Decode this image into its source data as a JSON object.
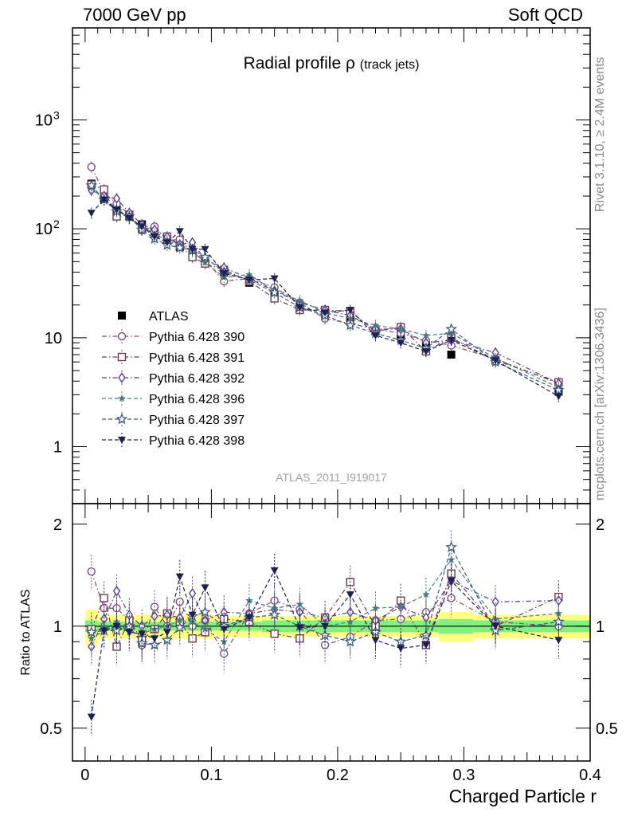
{
  "header": {
    "left": "7000 GeV pp",
    "right": "Soft QCD"
  },
  "side_labels": {
    "rivet": "Rivet 3.1.10, ≥ 2.4M events",
    "mcplots": "mcplots.cern.ch [arXiv:1306.3436]"
  },
  "watermark": "ATLAS_2011_I919017",
  "chart_data": [
    {
      "type": "scatter",
      "panel": "main",
      "title": "Radial profile",
      "title_symbol": "ρ",
      "title_suffix": "(track jets)",
      "xlabel": "Charged Particle r",
      "ylabel": "",
      "xlim": [
        -0.01,
        0.4
      ],
      "ylim": [
        0.3,
        7000
      ],
      "yscale": "log",
      "xticks": [
        "0",
        "0.1",
        "0.2",
        "0.3",
        "0.4"
      ],
      "yticks": [
        "1",
        "10",
        "10^2",
        "10^3"
      ],
      "legend_position": "left",
      "x": [
        0.005,
        0.015,
        0.025,
        0.035,
        0.045,
        0.055,
        0.065,
        0.075,
        0.085,
        0.095,
        0.11,
        0.13,
        0.15,
        0.17,
        0.19,
        0.21,
        0.23,
        0.25,
        0.27,
        0.29,
        0.325,
        0.375
      ],
      "series": [
        {
          "name": "ATLAS",
          "marker": "filled-square",
          "color": "#000000",
          "line": "none",
          "values": [
            260,
            190,
            150,
            130,
            110,
            92,
            78,
            68,
            60,
            50,
            40,
            32,
            24,
            19,
            17,
            14.5,
            11.5,
            10.5,
            8.5,
            7,
            6.2,
            3.2
          ]
        },
        {
          "name": "Pythia 6.428 390",
          "marker": "open-circle",
          "color": "#7b4f7f",
          "line": "dashdot",
          "values": [
            370,
            215,
            170,
            135,
            97,
            105,
            78,
            80,
            60,
            52,
            33,
            35,
            29,
            21,
            15,
            13.5,
            12,
            11,
            9.4,
            8.5,
            6.4,
            3.8
          ]
        },
        {
          "name": "Pythia 6.428 391",
          "marker": "open-square",
          "color": "#6e3a50",
          "line": "dashdot",
          "values": [
            255,
            230,
            130,
            135,
            100,
            90,
            85,
            70,
            55,
            48,
            42,
            33,
            23,
            18,
            18,
            17.5,
            11.5,
            12.5,
            7.5,
            10,
            6.2,
            3.9
          ]
        },
        {
          "name": "Pythia 6.428 392",
          "marker": "open-diamond",
          "color": "#5b3f8e",
          "line": "dashdot",
          "values": [
            225,
            200,
            190,
            140,
            110,
            98,
            84,
            72,
            75,
            52,
            44,
            35,
            27,
            21,
            18,
            16,
            12,
            12,
            9,
            9.5,
            7.3,
            3.8
          ]
        },
        {
          "name": "Pythia 6.428 396",
          "marker": "filled-star-small",
          "color": "#4e7a7f",
          "line": "dashed",
          "values": [
            240,
            185,
            155,
            125,
            105,
            90,
            78,
            71,
            62,
            49,
            36,
            38,
            27,
            22,
            17,
            15,
            13,
            12,
            10.5,
            11,
            6.5,
            3.5
          ]
        },
        {
          "name": "Pythia 6.428 397",
          "marker": "open-star",
          "color": "#3e5b7e",
          "line": "dashed",
          "values": [
            250,
            185,
            145,
            130,
            98,
            81,
            71,
            67,
            64,
            55,
            40,
            34,
            26,
            19,
            16,
            13,
            11,
            9.5,
            8,
            12,
            6,
            3.3
          ]
        },
        {
          "name": "Pythia 6.428 398",
          "marker": "filled-down-triangle",
          "color": "#1e2250",
          "line": "dashed",
          "values": [
            140,
            185,
            150,
            125,
            105,
            85,
            75,
            95,
            65,
            65,
            39,
            34,
            35,
            19,
            17,
            18,
            10.5,
            9,
            7.5,
            9.5,
            6.2,
            2.9
          ]
        }
      ]
    },
    {
      "type": "scatter",
      "panel": "ratio",
      "ylabel": "Ratio to ATLAS",
      "xlabel": "Charged Particle r",
      "xlim": [
        -0.01,
        0.4
      ],
      "ylim": [
        0.4,
        2.3
      ],
      "yscale": "log",
      "yticks": [
        "0.5",
        "1",
        "2"
      ],
      "xticks": [
        "0",
        "0.1",
        "0.2",
        "0.3",
        "0.4"
      ],
      "x": [
        0.005,
        0.015,
        0.025,
        0.035,
        0.045,
        0.055,
        0.065,
        0.075,
        0.085,
        0.095,
        0.11,
        0.13,
        0.15,
        0.17,
        0.19,
        0.21,
        0.23,
        0.25,
        0.27,
        0.29,
        0.325,
        0.375
      ],
      "band_inner_rel": [
        0.04,
        0.03,
        0.03,
        0.03,
        0.03,
        0.03,
        0.03,
        0.03,
        0.03,
        0.03,
        0.03,
        0.03,
        0.04,
        0.04,
        0.04,
        0.04,
        0.04,
        0.04,
        0.04,
        0.05,
        0.04,
        0.04
      ],
      "band_outer_rel": [
        0.12,
        0.08,
        0.08,
        0.08,
        0.08,
        0.08,
        0.08,
        0.08,
        0.08,
        0.08,
        0.07,
        0.07,
        0.07,
        0.07,
        0.07,
        0.07,
        0.07,
        0.07,
        0.07,
        0.1,
        0.08,
        0.08
      ],
      "series": [
        {
          "name": "Pythia 6.428 390",
          "values": [
            1.45,
            1.13,
            1.13,
            1.04,
            0.88,
            1.14,
            1.0,
            1.18,
            1.0,
            1.04,
            0.83,
            1.09,
            1.19,
            1.12,
            0.88,
            0.93,
            1.04,
            1.05,
            1.1,
            1.21,
            1.03,
            1.0
          ]
        },
        {
          "name": "Pythia 6.428 391",
          "values": [
            0.98,
            1.21,
            0.87,
            1.04,
            0.91,
            0.98,
            1.09,
            1.03,
            0.92,
            0.96,
            1.05,
            1.03,
            0.95,
            0.92,
            1.06,
            1.35,
            1.0,
            1.19,
            0.88,
            1.43,
            1.0,
            1.22
          ]
        },
        {
          "name": "Pythia 6.428 392",
          "values": [
            0.87,
            1.05,
            1.27,
            1.08,
            1.0,
            1.07,
            1.08,
            1.06,
            1.25,
            1.04,
            1.1,
            1.09,
            1.12,
            1.1,
            1.06,
            1.1,
            1.04,
            1.14,
            1.06,
            1.36,
            1.18,
            1.19
          ]
        },
        {
          "name": "Pythia 6.428 396",
          "values": [
            0.92,
            0.97,
            1.03,
            0.96,
            0.95,
            0.98,
            1.0,
            1.04,
            1.03,
            0.98,
            0.9,
            1.19,
            1.13,
            1.16,
            1.0,
            1.03,
            1.13,
            1.14,
            1.24,
            1.57,
            1.05,
            1.09
          ]
        },
        {
          "name": "Pythia 6.428 397",
          "values": [
            0.96,
            0.97,
            0.97,
            1.0,
            0.89,
            0.88,
            0.91,
            0.99,
            1.07,
            1.1,
            1.0,
            1.06,
            1.08,
            1.0,
            0.94,
            0.9,
            0.96,
            0.9,
            0.94,
            1.71,
            0.97,
            1.03
          ]
        },
        {
          "name": "Pythia 6.428 398",
          "values": [
            0.54,
            0.97,
            1.0,
            0.96,
            0.95,
            0.92,
            0.96,
            1.4,
            1.08,
            1.3,
            0.98,
            1.06,
            1.46,
            0.99,
            1.0,
            1.24,
            0.91,
            0.86,
            0.88,
            1.36,
            1.0,
            0.91
          ]
        }
      ]
    }
  ]
}
